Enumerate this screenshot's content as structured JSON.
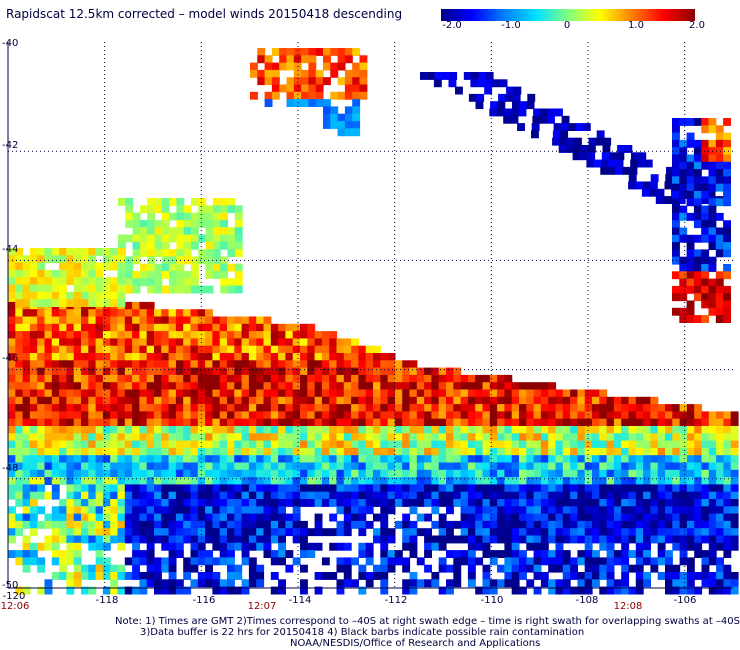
{
  "title": "Rapidscat 12.5km corrected – model winds 20150418 descending",
  "colorbar": {
    "ticks": [
      "-2.0",
      "-1.0",
      "0",
      "1.0",
      "2.0"
    ],
    "min": -2.0,
    "max": 2.0,
    "colors": [
      "#00008b",
      "#0000ff",
      "#0080ff",
      "#00e0ff",
      "#80ff80",
      "#ffff00",
      "#ff8000",
      "#ff0000",
      "#8b0000"
    ]
  },
  "y_ticks": [
    "-40",
    "-42",
    "-44",
    "-46",
    "-48",
    "-50"
  ],
  "x_ticks": [
    "-120",
    "-118",
    "-116",
    "-114",
    "-112",
    "-110",
    "-108",
    "-106"
  ],
  "time_labels": [
    "12:06",
    "12:07",
    "12:08"
  ],
  "notes": [
    "Note: 1) Times are GMT 2)Times correspond to –40S at right swath edge – time is right swath for overlapping swaths at –40S",
    "3)Data buffer is 22 hrs for 20150418 4) Black barbs indicate possible rain contamination",
    "NOAA/NESDIS/Office of Research and Applications"
  ],
  "map": {
    "lon_range": [
      -120,
      -105
    ],
    "lat_range": [
      -50,
      -40
    ],
    "grid": true,
    "value_description": "wind speed difference (corrected minus model)"
  }
}
